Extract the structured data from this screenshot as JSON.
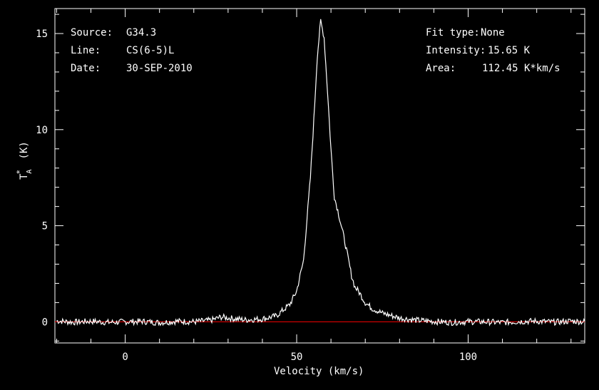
{
  "info_left": [
    {
      "key": "Source:",
      "value": "G34.3"
    },
    {
      "key": "Line:",
      "value": "CS(6-5)L"
    },
    {
      "key": "Date:",
      "value": "30-SEP-2010"
    }
  ],
  "info_right": [
    {
      "key": "Fit type:",
      "value": "None"
    },
    {
      "key": "Intensity:",
      "value": "15.65 K"
    },
    {
      "key": "Area:",
      "value": "112.45 K*km/s"
    }
  ],
  "colors": {
    "background": "#000000",
    "spectrum": "#ffffff",
    "baseline": "#cc0000"
  },
  "chart_data": {
    "type": "line",
    "xlabel": "Velocity (km/s)",
    "ylabel": "T_A* (K)",
    "xlim": [
      -20.5,
      134
    ],
    "ylim": [
      -1.1,
      16.3
    ],
    "x_ticks": [
      0,
      50,
      100
    ],
    "y_ticks": [
      0,
      5,
      10,
      15
    ],
    "baseline_y": 0,
    "series": [
      {
        "x": [
          -20,
          -15,
          -10,
          -5,
          0,
          5,
          10,
          15,
          20,
          25,
          28,
          30,
          35,
          40,
          44,
          46,
          48,
          50,
          52,
          54,
          55,
          56,
          57,
          58,
          59,
          60,
          61,
          62,
          63,
          64,
          65,
          66,
          67,
          68,
          70,
          72,
          75,
          80,
          85,
          90,
          95,
          100,
          105,
          110,
          115,
          120,
          125,
          130,
          134
        ],
        "values": [
          0.05,
          -0.02,
          0.03,
          -0.03,
          0.0,
          0.02,
          -0.04,
          0.03,
          0.0,
          0.08,
          0.25,
          0.2,
          0.1,
          0.15,
          0.3,
          0.6,
          0.9,
          1.6,
          3.2,
          7.5,
          10.5,
          13.8,
          15.65,
          14.8,
          12.0,
          9.0,
          6.5,
          5.8,
          5.0,
          4.2,
          3.3,
          2.4,
          1.8,
          1.6,
          1.0,
          0.7,
          0.45,
          0.2,
          0.08,
          0.02,
          -0.03,
          0.01,
          0.0,
          -0.04,
          0.02,
          0.03,
          -0.02,
          0.04,
          0.0
        ]
      }
    ]
  }
}
